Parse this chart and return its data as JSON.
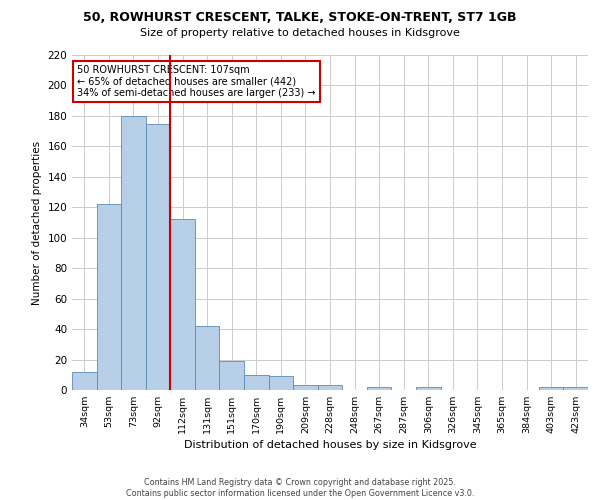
{
  "title_line1": "50, ROWHURST CRESCENT, TALKE, STOKE-ON-TRENT, ST7 1GB",
  "title_line2": "Size of property relative to detached houses in Kidsgrove",
  "xlabel": "Distribution of detached houses by size in Kidsgrove",
  "ylabel": "Number of detached properties",
  "categories": [
    "34sqm",
    "53sqm",
    "73sqm",
    "92sqm",
    "112sqm",
    "131sqm",
    "151sqm",
    "170sqm",
    "190sqm",
    "209sqm",
    "228sqm",
    "248sqm",
    "267sqm",
    "287sqm",
    "306sqm",
    "326sqm",
    "345sqm",
    "365sqm",
    "384sqm",
    "403sqm",
    "423sqm"
  ],
  "values": [
    12,
    122,
    180,
    175,
    112,
    42,
    19,
    10,
    9,
    3,
    3,
    0,
    2,
    0,
    2,
    0,
    0,
    0,
    0,
    2,
    2
  ],
  "bar_color": "#b8cfe8",
  "bar_edge_color": "#5a8ab8",
  "vline_color": "#cc0000",
  "annotation_text": "50 ROWHURST CRESCENT: 107sqm\n← 65% of detached houses are smaller (442)\n34% of semi-detached houses are larger (233) →",
  "annotation_box_color": "#ffffff",
  "annotation_box_edge": "#cc0000",
  "ylim": [
    0,
    220
  ],
  "yticks": [
    0,
    20,
    40,
    60,
    80,
    100,
    120,
    140,
    160,
    180,
    200,
    220
  ],
  "background_color": "#ffffff",
  "grid_color": "#cccccc",
  "footer_line1": "Contains HM Land Registry data © Crown copyright and database right 2025.",
  "footer_line2": "Contains public sector information licensed under the Open Government Licence v3.0."
}
